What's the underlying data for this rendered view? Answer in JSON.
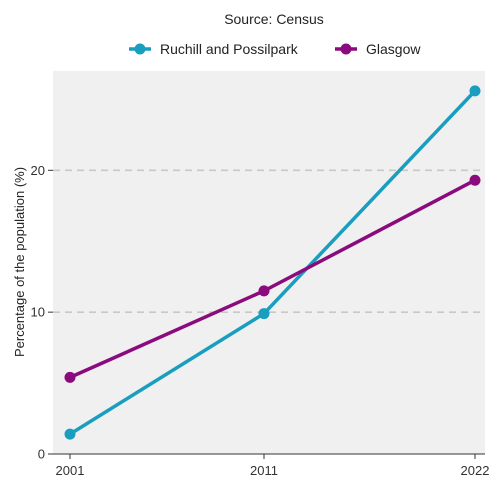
{
  "chart_data": {
    "type": "line",
    "caption": "Source: Census",
    "ylabel": "Percentage of the population (%)",
    "xlabel": "",
    "categories": [
      "2001",
      "2011",
      "2022"
    ],
    "x_numeric": [
      2001,
      2011,
      2022
    ],
    "ylim": [
      0,
      27
    ],
    "yticks": [
      0,
      10,
      20
    ],
    "grid": "horizontal dashed at 10 and 20",
    "legend_position": "top",
    "background": "#f0f0f0",
    "series": [
      {
        "name": "Ruchill and Possilpark",
        "color": "#1a9ebf",
        "values": [
          1.4,
          9.9,
          25.6
        ]
      },
      {
        "name": "Glasgow",
        "color": "#8b0a7e",
        "values": [
          5.4,
          11.5,
          19.3
        ]
      }
    ]
  }
}
